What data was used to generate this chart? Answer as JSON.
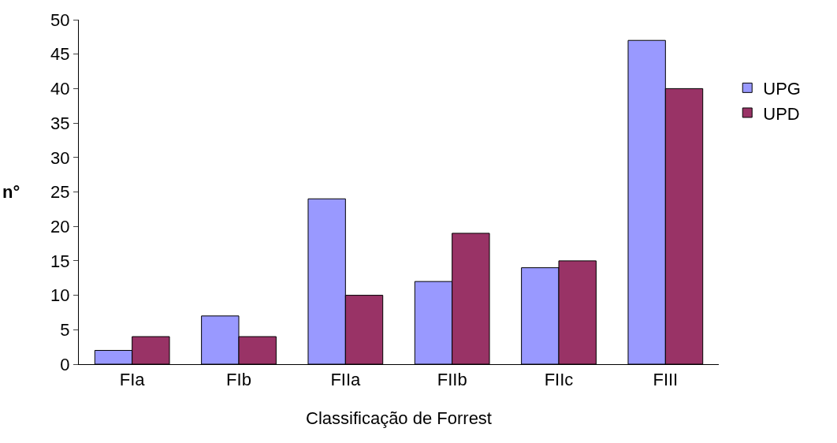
{
  "chart_data": {
    "type": "bar",
    "xlabel": "Classificação de Forrest",
    "ylabel": "n°",
    "categories": [
      "FIa",
      "FIb",
      "FIIa",
      "FIIb",
      "FIIc",
      "FIII"
    ],
    "series": [
      {
        "name": "UPG",
        "color": "#9999ff",
        "values": [
          2,
          7,
          24,
          12,
          14,
          47
        ]
      },
      {
        "name": "UPD",
        "color": "#993366",
        "values": [
          4,
          4,
          10,
          19,
          15,
          40
        ]
      }
    ],
    "ylim": [
      0,
      50
    ],
    "yticks": [
      0,
      5,
      10,
      15,
      20,
      25,
      30,
      35,
      40,
      45,
      50
    ],
    "grid": false,
    "legend": "right"
  }
}
